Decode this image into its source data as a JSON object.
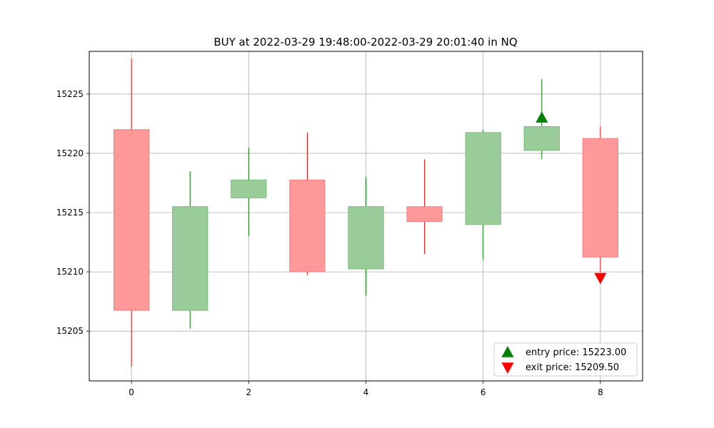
{
  "chart_data": {
    "type": "candlestick",
    "title": "BUY at 2022-03-29 19:48:00-2022-03-29 20:01:40 in NQ",
    "xlabel": "",
    "ylabel": "",
    "xlim": [
      -0.72,
      8.72
    ],
    "ylim": [
      15200.8,
      15228.6
    ],
    "x_ticks": [
      0,
      2,
      4,
      6,
      8
    ],
    "y_ticks": [
      15205,
      15210,
      15215,
      15220,
      15225
    ],
    "grid": true,
    "legend_position": "lower-right",
    "colors": {
      "up_body": "#99cc99",
      "up_edge": "#77bb77",
      "up_wick": "#008000",
      "down_body": "#ff9999",
      "down_edge": "#f08080",
      "down_wick": "#ff0000",
      "entry_marker": "#008000",
      "exit_marker": "#ff0000"
    },
    "candles": [
      {
        "x": 0,
        "open": 15222.0,
        "close": 15206.75,
        "high": 15228.0,
        "low": 15202.0
      },
      {
        "x": 1,
        "open": 15206.75,
        "close": 15215.5,
        "high": 15218.5,
        "low": 15205.2
      },
      {
        "x": 2,
        "open": 15216.25,
        "close": 15217.75,
        "high": 15220.5,
        "low": 15213.0
      },
      {
        "x": 3,
        "open": 15217.75,
        "close": 15210.0,
        "high": 15221.75,
        "low": 15209.75
      },
      {
        "x": 4,
        "open": 15210.25,
        "close": 15215.5,
        "high": 15218.0,
        "low": 15208.0
      },
      {
        "x": 5,
        "open": 15215.5,
        "close": 15214.25,
        "high": 15219.5,
        "low": 15211.5
      },
      {
        "x": 6,
        "open": 15214.0,
        "close": 15221.75,
        "high": 15222.0,
        "low": 15211.0
      },
      {
        "x": 7,
        "open": 15220.25,
        "close": 15222.25,
        "high": 15226.25,
        "low": 15219.5
      },
      {
        "x": 8,
        "open": 15221.25,
        "close": 15211.25,
        "high": 15222.25,
        "low": 15210.0
      }
    ],
    "markers": [
      {
        "name": "entry price: 15223.00",
        "x": 7,
        "y": 15223.0,
        "shape": "triangle-up"
      },
      {
        "name": "exit price: 15209.50",
        "x": 8,
        "y": 15209.5,
        "shape": "triangle-down"
      }
    ]
  }
}
